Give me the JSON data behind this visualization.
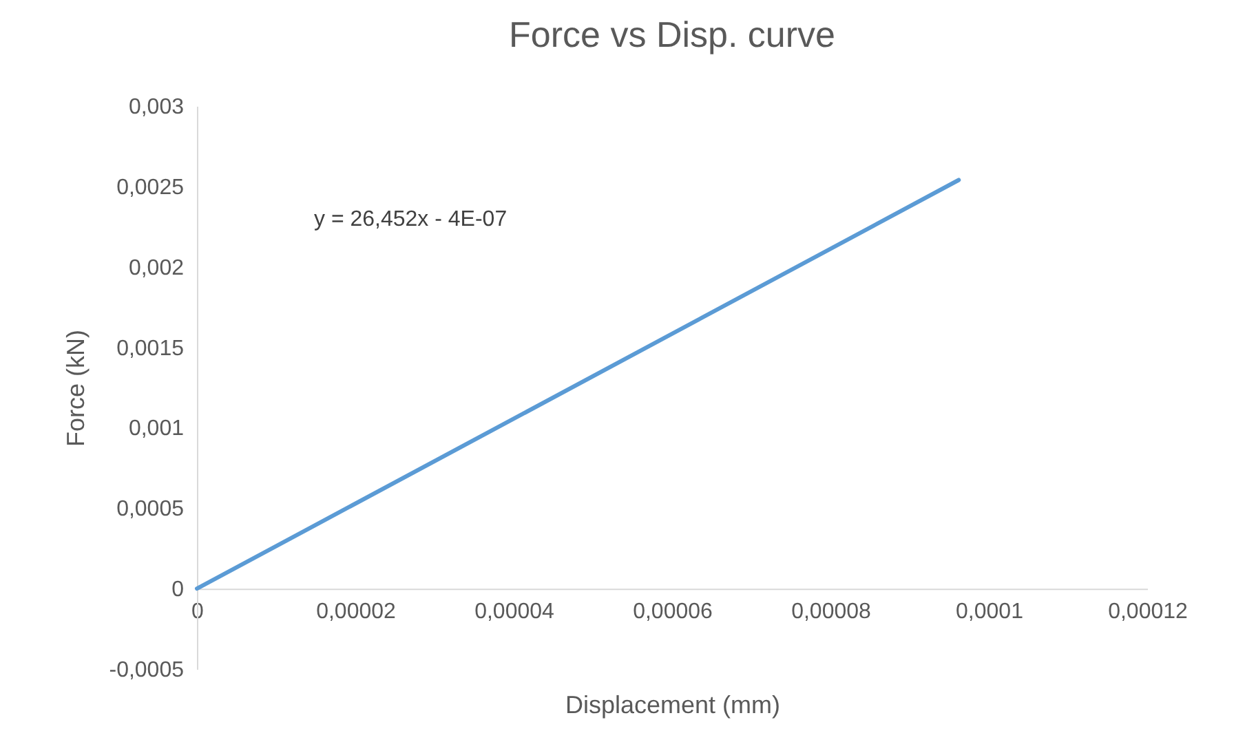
{
  "chart_data": {
    "type": "line",
    "title": "Force vs Disp. curve",
    "xlabel": "Displacement (mm)",
    "ylabel": "Force (kN)",
    "annotations": [
      "y = 26,452x - 4E-07"
    ],
    "x": [
      0,
      9.62e-05
    ],
    "series": [
      {
        "color": "#5b9bd5",
        "values": [
          0,
          0.00254
        ]
      }
    ],
    "xlim": [
      0,
      0.00012
    ],
    "xticks": [
      0,
      {
        "value": 2e-05,
        "label": "0,00002"
      },
      {
        "value": 4e-05,
        "label": "0,00004"
      },
      {
        "value": 6e-05,
        "label": "0,00006"
      },
      {
        "value": 8e-05,
        "label": "0,00008"
      },
      {
        "value": 0.0001,
        "label": "0,0001"
      },
      {
        "value": 0.00012,
        "label": "0,00012"
      }
    ],
    "ylim": [
      -0.0005,
      0.003
    ],
    "yticks": [
      {
        "value": -0.0005,
        "label": "-0,0005"
      },
      0,
      {
        "value": 0.0005,
        "label": "0,0005"
      },
      {
        "value": 0.001,
        "label": "0,001"
      },
      {
        "value": 0.0015,
        "label": "0,0015"
      },
      {
        "value": 0.002,
        "label": "0,002"
      },
      {
        "value": 0.0025,
        "label": "0,0025"
      },
      {
        "value": 0.003,
        "label": "0,003"
      }
    ],
    "grid": false,
    "marker": "none",
    "line_style": "solid"
  }
}
